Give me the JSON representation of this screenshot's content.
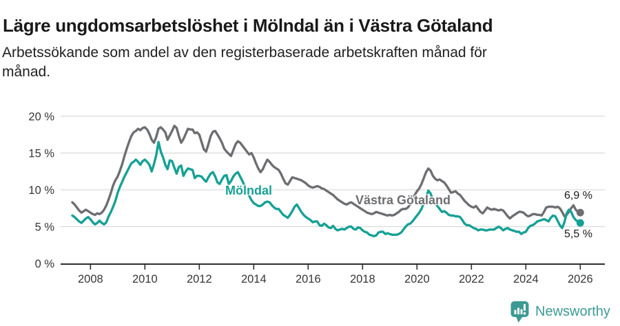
{
  "header": {
    "title": "Lägre ungdomsarbetslöshet i Mölndal än i Västra Götaland",
    "subtitle_line1": "Arbetssökande som andel av den registerbaserade arbetskraften månad för",
    "subtitle_line2": "månad."
  },
  "chart_data": {
    "type": "line",
    "title": "Lägre ungdomsarbetslöshet i Mölndal än i Västra Götaland",
    "x_unit": "month",
    "x_start": "2007-05",
    "x_end": "2026-01",
    "x_tick_labels": [
      "2008",
      "2010",
      "2012",
      "2014",
      "2016",
      "2018",
      "2020",
      "2022",
      "2024",
      "2026"
    ],
    "y_ticks": [
      0,
      5,
      10,
      15,
      20
    ],
    "y_tick_labels": [
      "0 %",
      "5 %",
      "10 %",
      "15 %",
      "20 %"
    ],
    "ylim": [
      0,
      21.5
    ],
    "grid": "horizontal",
    "legend_position": "inline-labels",
    "series": [
      {
        "name": "Västra Götaland",
        "color": "#6d6e72",
        "end_value_label": "6,9 %",
        "values": [
          8.3,
          8.0,
          7.6,
          7.2,
          6.9,
          7.1,
          7.3,
          7.1,
          6.9,
          6.7,
          6.6,
          6.8,
          6.7,
          6.9,
          7.3,
          7.9,
          8.7,
          9.6,
          10.6,
          11.3,
          11.8,
          12.6,
          13.5,
          14.6,
          15.6,
          16.5,
          17.3,
          17.8,
          18.0,
          18.3,
          18.1,
          18.4,
          18.5,
          18.2,
          17.6,
          16.8,
          16.4,
          17.2,
          18.3,
          18.5,
          18.2,
          17.8,
          16.8,
          17.4,
          18.0,
          18.7,
          18.4,
          17.3,
          16.4,
          16.9,
          17.6,
          18.3,
          18.2,
          18.2,
          17.7,
          17.8,
          17.5,
          16.5,
          15.5,
          15.2,
          16.2,
          17.3,
          17.9,
          18.0,
          17.5,
          17.0,
          16.4,
          15.6,
          15.2,
          14.9,
          14.6,
          15.4,
          16.2,
          16.6,
          16.4,
          16.0,
          15.6,
          15.2,
          14.8,
          15.0,
          14.4,
          13.6,
          12.9,
          12.4,
          12.8,
          13.5,
          14.1,
          13.8,
          13.4,
          13.1,
          12.9,
          12.7,
          12.2,
          11.5,
          10.9,
          10.7,
          11.2,
          11.7,
          11.6,
          11.5,
          11.4,
          11.3,
          11.1,
          10.9,
          10.6,
          10.4,
          10.3,
          10.4,
          10.5,
          10.4,
          10.2,
          10.1,
          9.9,
          9.7,
          9.5,
          9.3,
          9.0,
          8.7,
          8.5,
          8.3,
          8.1,
          8.0,
          8.2,
          8.3,
          8.1,
          7.9,
          7.7,
          7.5,
          7.3,
          7.1,
          6.9,
          6.8,
          6.7,
          6.8,
          7.0,
          6.9,
          6.8,
          6.7,
          6.6,
          6.5,
          6.6,
          6.5,
          6.6,
          6.8,
          7.0,
          7.3,
          7.4,
          7.4,
          7.6,
          8.0,
          8.6,
          9.3,
          9.8,
          10.2,
          10.8,
          11.6,
          12.4,
          12.9,
          12.6,
          11.9,
          11.5,
          11.3,
          11.4,
          11.2,
          11.0,
          10.6,
          10.1,
          9.6,
          9.7,
          9.8,
          9.5,
          9.3,
          8.9,
          8.5,
          8.2,
          7.9,
          7.7,
          7.6,
          7.8,
          7.4,
          7.0,
          6.8,
          7.2,
          7.6,
          7.4,
          7.3,
          7.4,
          7.3,
          7.2,
          7.3,
          7.2,
          6.8,
          6.4,
          6.1,
          6.4,
          6.6,
          6.8,
          7.0,
          7.0,
          6.9,
          6.6,
          6.4,
          6.5,
          6.7,
          6.7,
          6.6,
          6.6,
          6.5,
          7.0,
          7.6,
          7.7,
          7.7,
          7.7,
          7.6,
          7.7,
          7.5,
          7.0,
          6.4,
          6.6,
          7.0,
          7.5,
          7.9,
          7.3,
          7.0,
          6.9
        ]
      },
      {
        "name": "Mölndal",
        "color": "#16a195",
        "end_value_label": "5,5 %",
        "values": [
          6.5,
          6.3,
          6.0,
          5.7,
          5.5,
          5.8,
          6.1,
          6.3,
          6.0,
          5.6,
          5.3,
          5.5,
          5.8,
          5.5,
          5.3,
          5.6,
          6.4,
          7.0,
          7.7,
          8.5,
          9.6,
          10.4,
          11.1,
          11.8,
          12.4,
          13.0,
          13.6,
          13.8,
          14.1,
          13.8,
          13.4,
          13.9,
          14.1,
          13.8,
          13.4,
          12.5,
          13.5,
          14.7,
          16.5,
          15.2,
          14.4,
          13.4,
          12.8,
          14.0,
          13.9,
          13.0,
          12.2,
          13.1,
          13.3,
          11.9,
          12.5,
          12.9,
          12.8,
          12.7,
          11.6,
          11.9,
          11.9,
          11.8,
          11.4,
          11.1,
          11.7,
          12.2,
          12.4,
          11.8,
          11.0,
          10.8,
          11.4,
          11.9,
          12.0,
          10.8,
          11.2,
          11.8,
          12.2,
          12.4,
          11.8,
          11.2,
          10.5,
          9.8,
          9.2,
          8.6,
          8.2,
          8.0,
          7.8,
          7.8,
          8.0,
          8.3,
          8.4,
          8.3,
          7.9,
          7.6,
          7.4,
          7.4,
          7.0,
          6.6,
          6.4,
          6.2,
          6.6,
          7.1,
          7.7,
          8.0,
          7.5,
          7.0,
          6.6,
          6.3,
          6.1,
          5.9,
          5.6,
          5.7,
          5.7,
          5.2,
          5.1,
          5.4,
          5.2,
          4.9,
          4.8,
          5.1,
          4.7,
          4.5,
          4.6,
          4.7,
          4.6,
          4.8,
          5.0,
          5.0,
          4.7,
          4.6,
          4.9,
          4.8,
          4.5,
          4.3,
          4.2,
          3.9,
          3.8,
          3.7,
          3.8,
          4.2,
          4.3,
          4.3,
          4.0,
          4.1,
          4.0,
          3.9,
          3.9,
          3.9,
          4.0,
          4.2,
          4.6,
          5.0,
          5.3,
          5.4,
          5.7,
          6.1,
          6.5,
          6.9,
          7.4,
          8.2,
          9.0,
          9.9,
          9.5,
          8.6,
          8.2,
          7.8,
          7.4,
          7.0,
          7.1,
          6.9,
          6.6,
          6.5,
          6.5,
          6.4,
          6.4,
          6.3,
          5.9,
          5.4,
          5.2,
          5.2,
          5.0,
          4.8,
          4.7,
          4.5,
          4.6,
          4.6,
          4.5,
          4.5,
          4.6,
          4.6,
          4.6,
          4.8,
          5.0,
          4.8,
          4.5,
          4.7,
          4.8,
          4.6,
          4.5,
          4.4,
          4.3,
          4.3,
          4.0,
          4.2,
          4.3,
          4.8,
          5.1,
          5.2,
          5.4,
          5.7,
          5.8,
          5.9,
          6.0,
          5.9,
          5.7,
          6.2,
          6.5,
          6.4,
          5.8,
          5.2,
          4.8,
          5.6,
          6.8,
          7.3,
          7.0,
          6.3,
          5.9,
          5.7,
          5.5
        ]
      }
    ]
  },
  "branding": {
    "name": "Newsworthy",
    "icon": "bar-chart-speech-bubble-icon",
    "color": "#3d9a93"
  },
  "colors": {
    "background": "#ffffff",
    "title": "#191919",
    "grid": "#d9d9dc",
    "axis": "#2d2d30",
    "tick_label": "#36363a",
    "value_label": "#1a1a1a"
  }
}
